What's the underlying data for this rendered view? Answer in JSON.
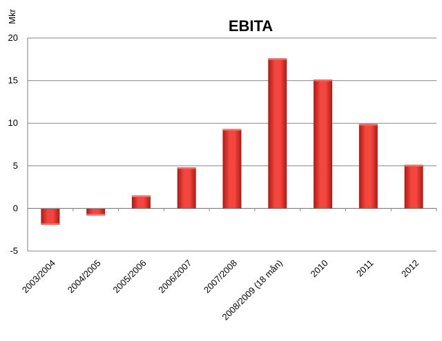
{
  "chart_data": {
    "type": "bar",
    "title": "EBITA",
    "ylabel": "Mkr",
    "xlabel": "",
    "categories": [
      "2003/2004",
      "2004/2005",
      "2005/2006",
      "2006/2007",
      "2007/2008",
      "2008/2009 (18 mån)",
      "2010",
      "2011",
      "2012"
    ],
    "values": [
      -1.9,
      -0.8,
      1.5,
      4.8,
      9.3,
      17.6,
      15.1,
      9.9,
      5.1
    ],
    "ylim": [
      -5,
      20
    ],
    "yticks": [
      "-5",
      "0",
      "5",
      "10",
      "15",
      "20"
    ],
    "grid": true,
    "legend": "none",
    "bar_color": "#e8302a"
  }
}
